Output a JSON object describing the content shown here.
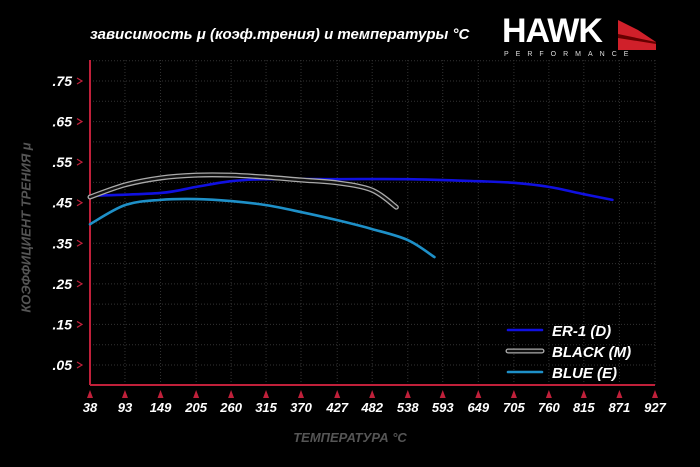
{
  "chart_data": {
    "type": "line",
    "title": "зависимость μ (коэф.трения) и температуры °C",
    "xlabel": "ТЕМПЕРАТУРА °C",
    "ylabel": "КОЭФФИЦИЕНТ ТРЕНИЯ μ",
    "x_ticks": [
      38,
      93,
      149,
      205,
      260,
      315,
      370,
      427,
      482,
      538,
      593,
      649,
      705,
      760,
      815,
      871,
      927
    ],
    "y_ticks": [
      0.05,
      0.15,
      0.25,
      0.35,
      0.45,
      0.55,
      0.65,
      0.75
    ],
    "y_tick_labels": [
      ".05",
      ".15",
      ".25",
      ".35",
      ".45",
      ".55",
      ".65",
      ".75"
    ],
    "xlim": [
      38,
      927
    ],
    "ylim": [
      0.05,
      0.75
    ],
    "grid": true,
    "legend_position": "bottom-right",
    "series": [
      {
        "name": "ER-1 (D)",
        "color": "#1010e0",
        "x": [
          38,
          149,
          205,
          260,
          315,
          427,
          538,
          649,
          705,
          760,
          815,
          860
        ],
        "y": [
          0.467,
          0.474,
          0.489,
          0.503,
          0.508,
          0.508,
          0.508,
          0.503,
          0.499,
          0.489,
          0.471,
          0.457
        ]
      },
      {
        "name": "BLACK (M)",
        "color": "#111111",
        "outline": "#aaaaaa",
        "x": [
          38,
          93,
          149,
          205,
          260,
          315,
          370,
          427,
          482,
          520
        ],
        "y": [
          0.464,
          0.494,
          0.511,
          0.518,
          0.518,
          0.513,
          0.506,
          0.499,
          0.481,
          0.439
        ]
      },
      {
        "name": "BLUE (E)",
        "color": "#1e90c8",
        "x": [
          38,
          93,
          149,
          205,
          260,
          315,
          370,
          427,
          482,
          538,
          580
        ],
        "y": [
          0.397,
          0.444,
          0.457,
          0.459,
          0.454,
          0.444,
          0.427,
          0.407,
          0.385,
          0.358,
          0.316
        ]
      }
    ]
  },
  "logo": {
    "name": "HAWK",
    "sub": "PERFORMANCE"
  },
  "colors": {
    "axis": "#c0203a",
    "grid": "#333333",
    "background": "#000000"
  }
}
